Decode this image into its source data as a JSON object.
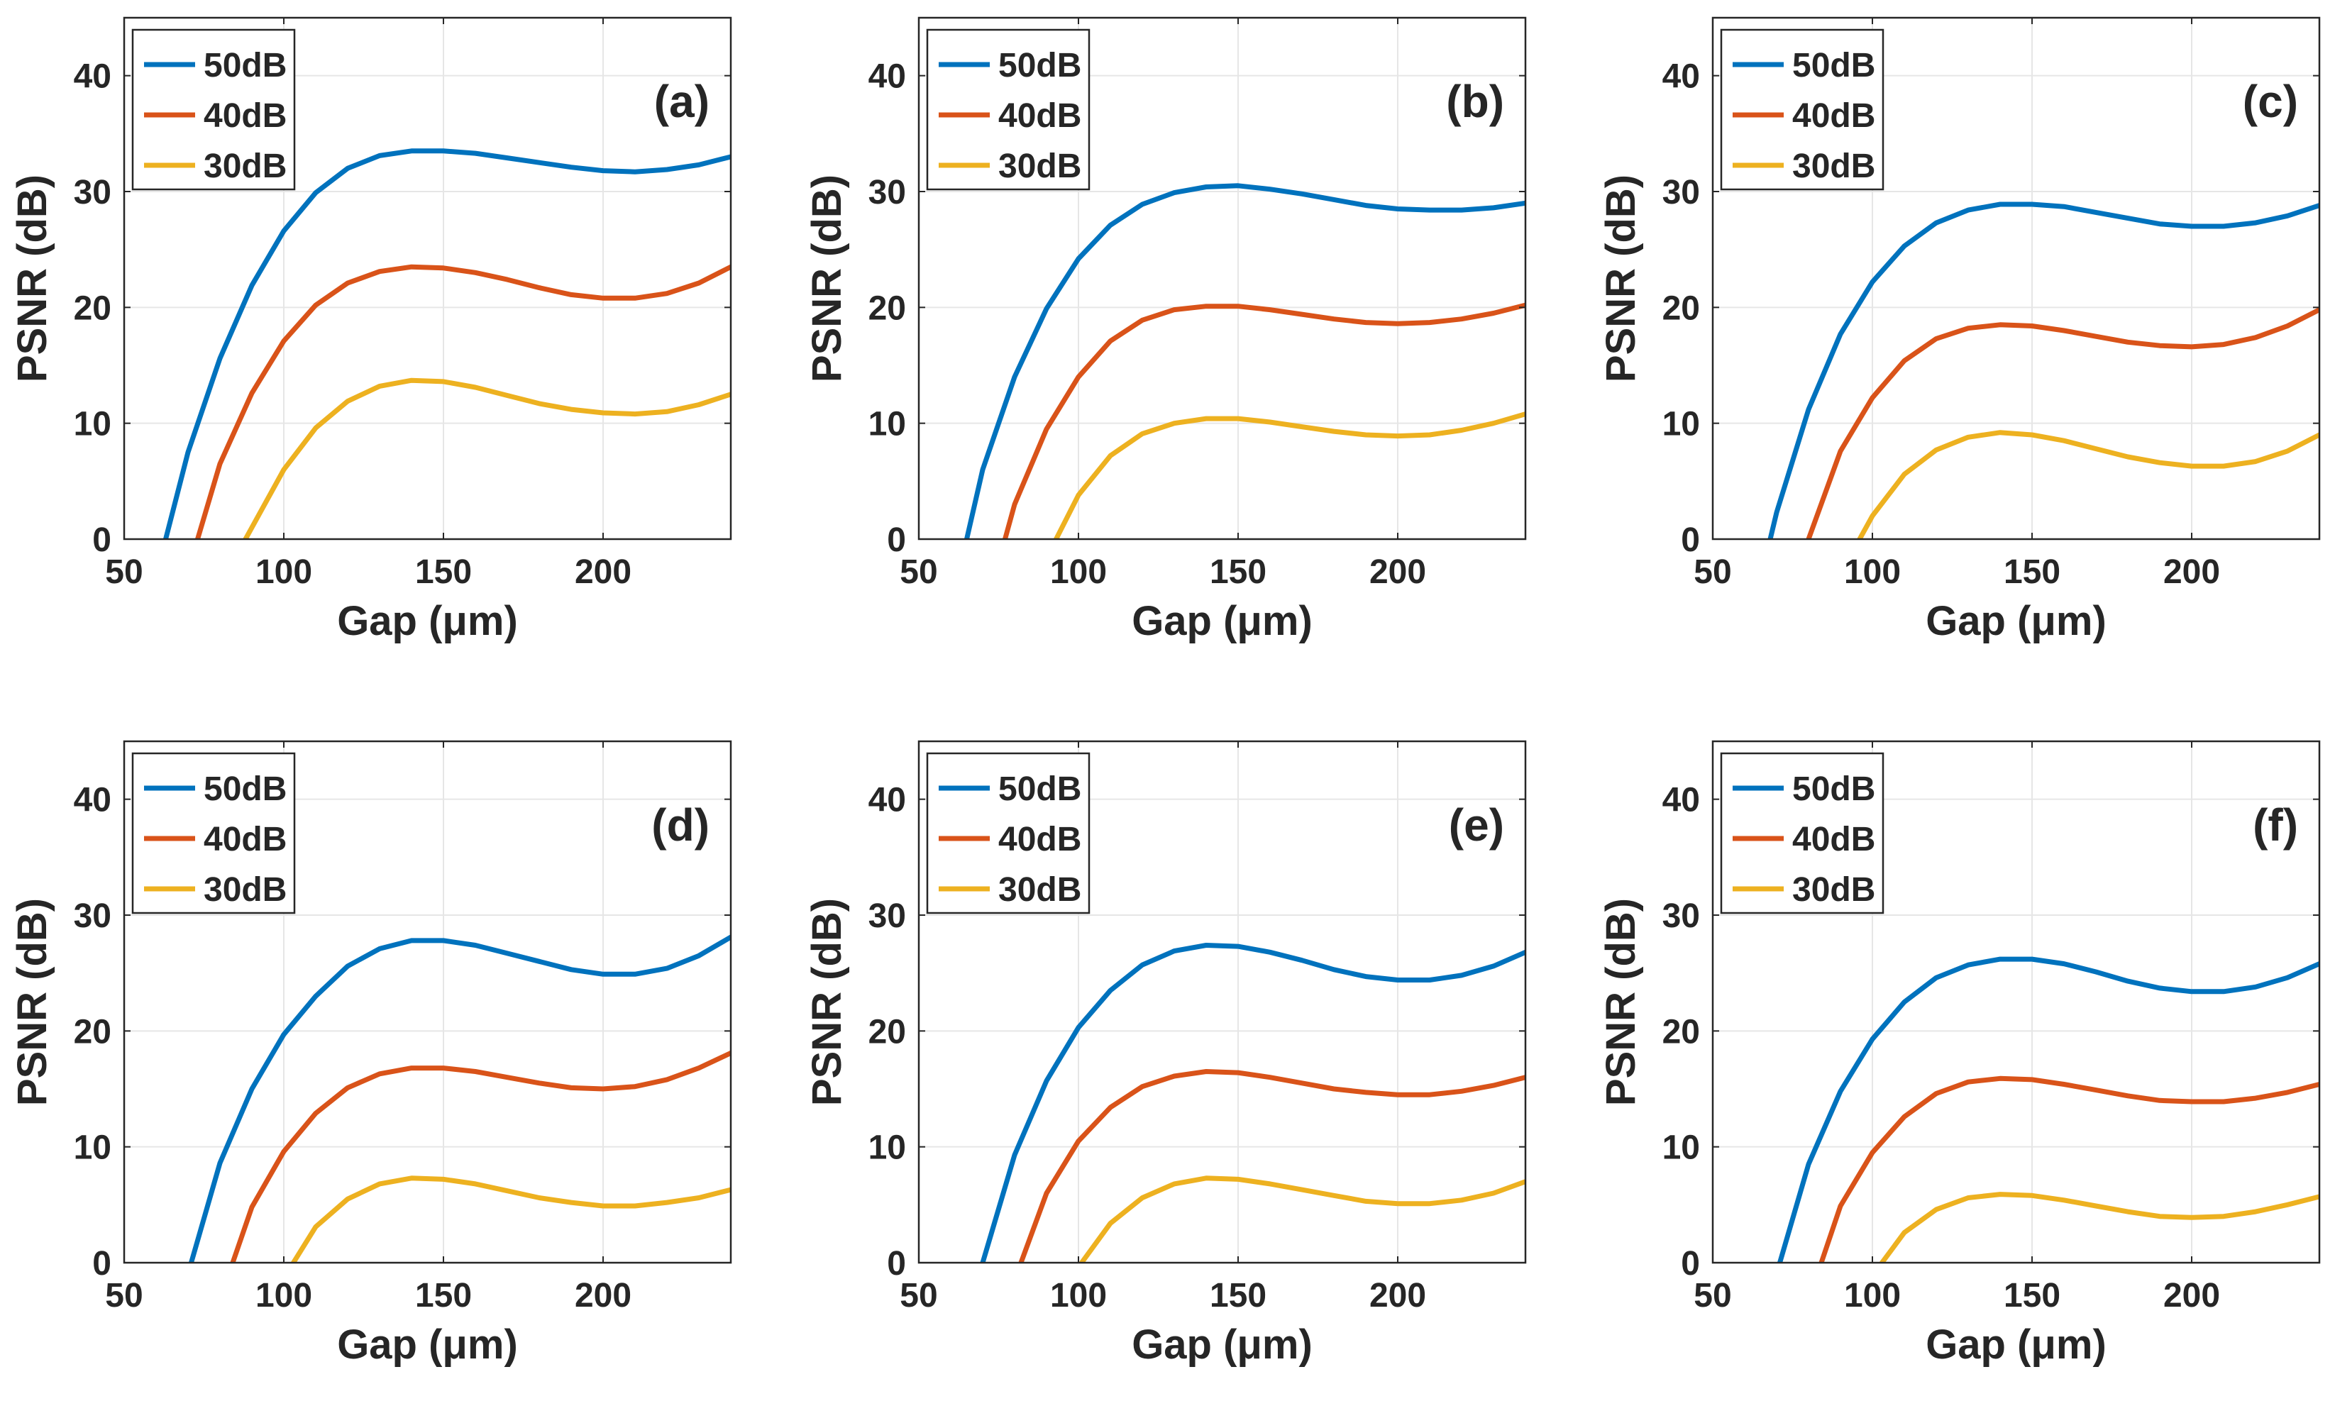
{
  "figure": {
    "panel_count": 6,
    "layout": "3 columns x 2 rows"
  },
  "colors": {
    "50dB": "#0072BD",
    "40dB": "#D95319",
    "30dB": "#EDB120",
    "axes": "#262626",
    "grid": "#e6e6e6"
  },
  "chart_data": [
    {
      "panel": "(a)",
      "type": "line",
      "xlabel": "Gap (μm)",
      "ylabel": "PSNR (dB)",
      "xlim": [
        50,
        240
      ],
      "ylim": [
        0,
        45
      ],
      "xticks": [
        "50",
        "100",
        "150",
        "200"
      ],
      "yticks": [
        "0",
        "10",
        "20",
        "30",
        "40"
      ],
      "grid": true,
      "legend_position": "top-left",
      "series": [
        {
          "name": "50dB",
          "x": [
            63,
            70,
            80,
            90,
            100,
            110,
            120,
            130,
            140,
            150,
            160,
            170,
            180,
            190,
            200,
            210,
            220,
            230,
            240
          ],
          "y": [
            0,
            7.5,
            15.6,
            21.9,
            26.6,
            29.9,
            32.0,
            33.1,
            33.5,
            33.5,
            33.3,
            32.9,
            32.5,
            32.1,
            31.8,
            31.7,
            31.9,
            32.3,
            33.0
          ]
        },
        {
          "name": "40dB",
          "x": [
            73,
            80,
            90,
            100,
            110,
            120,
            130,
            140,
            150,
            160,
            170,
            180,
            190,
            200,
            210,
            220,
            230,
            240
          ],
          "y": [
            0,
            6.5,
            12.6,
            17.1,
            20.2,
            22.1,
            23.1,
            23.5,
            23.4,
            23.0,
            22.4,
            21.7,
            21.1,
            20.8,
            20.8,
            21.2,
            22.1,
            23.5
          ]
        },
        {
          "name": "30dB",
          "x": [
            88,
            100,
            110,
            120,
            130,
            140,
            150,
            160,
            170,
            180,
            190,
            200,
            210,
            220,
            230,
            240
          ],
          "y": [
            0,
            6.0,
            9.6,
            11.9,
            13.2,
            13.7,
            13.6,
            13.1,
            12.4,
            11.7,
            11.2,
            10.9,
            10.8,
            11.0,
            11.6,
            12.5
          ]
        }
      ]
    },
    {
      "panel": "(b)",
      "type": "line",
      "xlabel": "Gap (μm)",
      "ylabel": "PSNR (dB)",
      "xlim": [
        50,
        240
      ],
      "ylim": [
        0,
        45
      ],
      "xticks": [
        "50",
        "100",
        "150",
        "200"
      ],
      "yticks": [
        "0",
        "10",
        "20",
        "30",
        "40"
      ],
      "grid": true,
      "legend_position": "top-left",
      "series": [
        {
          "name": "50dB",
          "x": [
            65,
            70,
            80,
            90,
            100,
            110,
            120,
            130,
            140,
            150,
            160,
            170,
            180,
            190,
            200,
            210,
            220,
            230,
            240
          ],
          "y": [
            0,
            6.0,
            14.0,
            19.9,
            24.2,
            27.1,
            28.9,
            29.9,
            30.4,
            30.5,
            30.2,
            29.8,
            29.3,
            28.8,
            28.5,
            28.4,
            28.4,
            28.6,
            29.0
          ]
        },
        {
          "name": "40dB",
          "x": [
            77,
            80,
            90,
            100,
            110,
            120,
            130,
            140,
            150,
            160,
            170,
            180,
            190,
            200,
            210,
            220,
            230,
            240
          ],
          "y": [
            0,
            3.0,
            9.5,
            14.0,
            17.1,
            18.9,
            19.8,
            20.1,
            20.1,
            19.8,
            19.4,
            19.0,
            18.7,
            18.6,
            18.7,
            19.0,
            19.5,
            20.2
          ]
        },
        {
          "name": "30dB",
          "x": [
            93,
            100,
            110,
            120,
            130,
            140,
            150,
            160,
            170,
            180,
            190,
            200,
            210,
            220,
            230,
            240
          ],
          "y": [
            0,
            3.8,
            7.2,
            9.1,
            10.0,
            10.4,
            10.4,
            10.1,
            9.7,
            9.3,
            9.0,
            8.9,
            9.0,
            9.4,
            10.0,
            10.8
          ]
        }
      ]
    },
    {
      "panel": "(c)",
      "type": "line",
      "xlabel": "Gap (μm)",
      "ylabel": "PSNR (dB)",
      "xlim": [
        50,
        240
      ],
      "ylim": [
        0,
        45
      ],
      "xticks": [
        "50",
        "100",
        "150",
        "200"
      ],
      "yticks": [
        "0",
        "10",
        "20",
        "30",
        "40"
      ],
      "grid": true,
      "legend_position": "top-left",
      "series": [
        {
          "name": "50dB",
          "x": [
            68,
            70,
            80,
            90,
            100,
            110,
            120,
            130,
            140,
            150,
            160,
            170,
            180,
            190,
            200,
            210,
            220,
            230,
            240
          ],
          "y": [
            0,
            2.3,
            11.2,
            17.7,
            22.2,
            25.3,
            27.3,
            28.4,
            28.9,
            28.9,
            28.7,
            28.2,
            27.7,
            27.2,
            27.0,
            27.0,
            27.3,
            27.9,
            28.8
          ]
        },
        {
          "name": "40dB",
          "x": [
            80,
            90,
            100,
            110,
            120,
            130,
            140,
            150,
            160,
            170,
            180,
            190,
            200,
            210,
            220,
            230,
            240
          ],
          "y": [
            0,
            7.6,
            12.2,
            15.4,
            17.3,
            18.2,
            18.5,
            18.4,
            18.0,
            17.5,
            17.0,
            16.7,
            16.6,
            16.8,
            17.4,
            18.4,
            19.8
          ]
        },
        {
          "name": "30dB",
          "x": [
            96,
            100,
            110,
            120,
            130,
            140,
            150,
            160,
            170,
            180,
            190,
            200,
            210,
            220,
            230,
            240
          ],
          "y": [
            0,
            2.0,
            5.6,
            7.7,
            8.8,
            9.2,
            9.0,
            8.5,
            7.8,
            7.1,
            6.6,
            6.3,
            6.3,
            6.7,
            7.6,
            9.0
          ]
        }
      ]
    },
    {
      "panel": "(d)",
      "type": "line",
      "xlabel": "Gap (μm)",
      "ylabel": "PSNR (dB)",
      "xlim": [
        50,
        240
      ],
      "ylim": [
        0,
        45
      ],
      "xticks": [
        "50",
        "100",
        "150",
        "200"
      ],
      "yticks": [
        "0",
        "10",
        "20",
        "30",
        "40"
      ],
      "grid": true,
      "legend_position": "top-left",
      "series": [
        {
          "name": "50dB",
          "x": [
            71,
            80,
            90,
            100,
            110,
            120,
            130,
            140,
            150,
            160,
            170,
            180,
            190,
            200,
            210,
            220,
            230,
            240
          ],
          "y": [
            0,
            8.6,
            15.0,
            19.7,
            23.0,
            25.6,
            27.1,
            27.8,
            27.8,
            27.4,
            26.7,
            26.0,
            25.3,
            24.9,
            24.9,
            25.4,
            26.5,
            28.1
          ]
        },
        {
          "name": "40dB",
          "x": [
            84,
            90,
            100,
            110,
            120,
            130,
            140,
            150,
            160,
            170,
            180,
            190,
            200,
            210,
            220,
            230,
            240
          ],
          "y": [
            0,
            4.8,
            9.6,
            12.9,
            15.1,
            16.3,
            16.8,
            16.8,
            16.5,
            16.0,
            15.5,
            15.1,
            15.0,
            15.2,
            15.8,
            16.8,
            18.1
          ]
        },
        {
          "name": "30dB",
          "x": [
            103,
            110,
            120,
            130,
            140,
            150,
            160,
            170,
            180,
            190,
            200,
            210,
            220,
            230,
            240
          ],
          "y": [
            0,
            3.1,
            5.5,
            6.8,
            7.3,
            7.2,
            6.8,
            6.2,
            5.6,
            5.2,
            4.9,
            4.9,
            5.2,
            5.6,
            6.3
          ]
        }
      ]
    },
    {
      "panel": "(e)",
      "type": "line",
      "xlabel": "Gap (μm)",
      "ylabel": "PSNR (dB)",
      "xlim": [
        50,
        240
      ],
      "ylim": [
        0,
        45
      ],
      "xticks": [
        "50",
        "100",
        "150",
        "200"
      ],
      "yticks": [
        "0",
        "10",
        "20",
        "30",
        "40"
      ],
      "grid": true,
      "legend_position": "top-left",
      "series": [
        {
          "name": "50dB",
          "x": [
            70,
            80,
            90,
            100,
            110,
            120,
            130,
            140,
            150,
            160,
            170,
            180,
            190,
            200,
            210,
            220,
            230,
            240
          ],
          "y": [
            0,
            9.3,
            15.7,
            20.3,
            23.5,
            25.7,
            26.9,
            27.4,
            27.3,
            26.8,
            26.1,
            25.3,
            24.7,
            24.4,
            24.4,
            24.8,
            25.6,
            26.8
          ]
        },
        {
          "name": "40dB",
          "x": [
            82,
            90,
            100,
            110,
            120,
            130,
            140,
            150,
            160,
            170,
            180,
            190,
            200,
            210,
            220,
            230,
            240
          ],
          "y": [
            0,
            6.0,
            10.5,
            13.4,
            15.2,
            16.1,
            16.5,
            16.4,
            16.0,
            15.5,
            15.0,
            14.7,
            14.5,
            14.5,
            14.8,
            15.3,
            16.0
          ]
        },
        {
          "name": "30dB",
          "x": [
            101,
            110,
            120,
            130,
            140,
            150,
            160,
            170,
            180,
            190,
            200,
            210,
            220,
            230,
            240
          ],
          "y": [
            0,
            3.4,
            5.6,
            6.8,
            7.3,
            7.2,
            6.8,
            6.3,
            5.8,
            5.3,
            5.1,
            5.1,
            5.4,
            6.0,
            7.0
          ]
        }
      ]
    },
    {
      "panel": "(f)",
      "type": "line",
      "xlabel": "Gap (μm)",
      "ylabel": "PSNR (dB)",
      "xlim": [
        50,
        240
      ],
      "ylim": [
        0,
        45
      ],
      "xticks": [
        "50",
        "100",
        "150",
        "200"
      ],
      "yticks": [
        "0",
        "10",
        "20",
        "30",
        "40"
      ],
      "grid": true,
      "legend_position": "top-left",
      "series": [
        {
          "name": "50dB",
          "x": [
            71,
            80,
            90,
            100,
            110,
            120,
            130,
            140,
            150,
            160,
            170,
            180,
            190,
            200,
            210,
            220,
            230,
            240
          ],
          "y": [
            0,
            8.5,
            14.8,
            19.3,
            22.5,
            24.6,
            25.7,
            26.2,
            26.2,
            25.8,
            25.1,
            24.3,
            23.7,
            23.4,
            23.4,
            23.8,
            24.6,
            25.8
          ]
        },
        {
          "name": "40dB",
          "x": [
            84,
            90,
            100,
            110,
            120,
            130,
            140,
            150,
            160,
            170,
            180,
            190,
            200,
            210,
            220,
            230,
            240
          ],
          "y": [
            0,
            4.9,
            9.5,
            12.6,
            14.6,
            15.6,
            15.9,
            15.8,
            15.4,
            14.9,
            14.4,
            14.0,
            13.9,
            13.9,
            14.2,
            14.7,
            15.4
          ]
        },
        {
          "name": "30dB",
          "x": [
            103,
            110,
            120,
            130,
            140,
            150,
            160,
            170,
            180,
            190,
            200,
            210,
            220,
            230,
            240
          ],
          "y": [
            0,
            2.6,
            4.6,
            5.6,
            5.9,
            5.8,
            5.4,
            4.9,
            4.4,
            4.0,
            3.9,
            4.0,
            4.4,
            5.0,
            5.7
          ]
        }
      ]
    }
  ]
}
